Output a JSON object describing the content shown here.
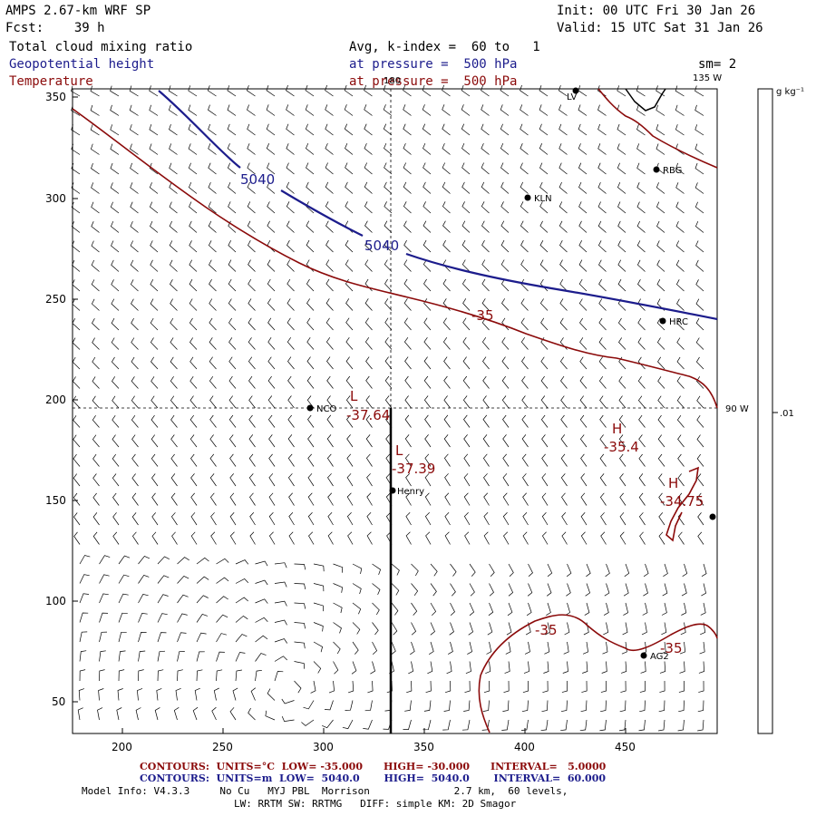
{
  "header": {
    "model": "AMPS 2.67-km WRF SP",
    "init": "Init: 00 UTC Fri 30 Jan 26",
    "fcst": "Fcst:    39 h",
    "valid": "Valid: 15 UTC Sat 31 Jan 26",
    "field1": "Total cloud mixing ratio",
    "field2": "Geopotential height",
    "field3": "Temperature",
    "kindex": "Avg, k-index =  60 to   1",
    "pressure2": "at pressure =  500 hPa",
    "pressure3": "at pressure =  500 hPa",
    "smoothing": "sm= 2",
    "colors": {
      "field1": "#000000",
      "field2": "#1c1c8c",
      "field3": "#8b0a0a"
    }
  },
  "map": {
    "x_ticks": [
      "200",
      "250",
      "300",
      "350",
      "400",
      "450"
    ],
    "y_ticks": [
      "350",
      "300",
      "250",
      "200",
      "150",
      "100",
      "50"
    ],
    "lon_labels": {
      "top_180": "180",
      "right_135": "135 W",
      "right_90": "90 W"
    },
    "stations": [
      {
        "id": "LV",
        "label": "LV"
      },
      {
        "id": "RBG",
        "label": "RBG"
      },
      {
        "id": "KLN",
        "label": "KLN"
      },
      {
        "id": "HRC",
        "label": "HRC"
      },
      {
        "id": "NCO",
        "label": "NCO"
      },
      {
        "id": "Henry",
        "label": "Henry"
      },
      {
        "id": "AG2",
        "label": "AG2"
      },
      {
        "id": "edge",
        "label": ""
      }
    ],
    "height_contour_labels": [
      "5040",
      "5040"
    ],
    "temp_contour_labels": [
      "-35",
      "-35",
      "-35"
    ],
    "extrema": [
      {
        "type": "L",
        "value": "-37.64"
      },
      {
        "type": "L",
        "value": "-37.39"
      },
      {
        "type": "H",
        "value": "-35.4"
      },
      {
        "type": "H",
        "value": "-34.75"
      }
    ]
  },
  "colorbar": {
    "units": "g kg⁻¹",
    "tick": ".01"
  },
  "footer": {
    "temp_contours": "CONTOURS:  UNITS=°C  LOW= -35.000      HIGH= -30.000      INTERVAL=   5.0000",
    "height_contours": "CONTOURS:  UNITS=m  LOW=  5040.0       HIGH=  5040.0       INTERVAL=  60.000",
    "model_info": "Model Info: V4.3.3     No Cu   MYJ PBL  Morrison              2.7 km,  60 levels,",
    "physics": "LW: RRTM SW: RRTMG   DIFF: simple KM: 2D Smagor"
  }
}
